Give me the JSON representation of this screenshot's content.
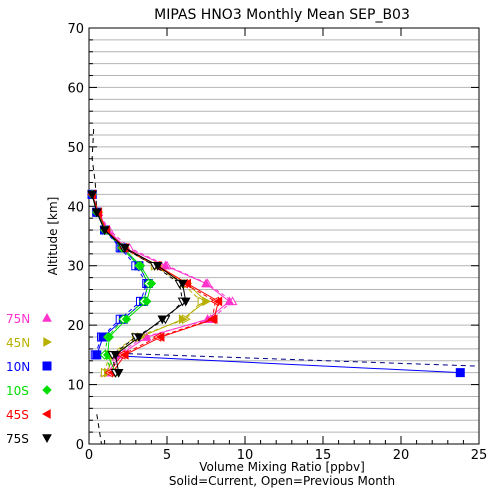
{
  "chart_data": {
    "type": "line",
    "title": "MIPAS HNO3 Monthly Mean SEP_B03",
    "xlabel": "Volume Mixing Ratio [ppbv]",
    "xlabel2": "Solid=Current, Open=Previous Month",
    "ylabel": "Altitude [km]",
    "xlim": [
      0,
      25
    ],
    "ylim": [
      0,
      70
    ],
    "xticks": [
      "0",
      "5",
      "10",
      "15",
      "20",
      "25"
    ],
    "yticks": [
      "0",
      "10",
      "20",
      "30",
      "40",
      "50",
      "60",
      "70"
    ],
    "grid": "horizontal",
    "legend_placement": "left-outside",
    "series": [
      {
        "name": "75N",
        "color": "#ff33cc",
        "marker": "triangle-up",
        "current": [
          [
            1.2,
            12
          ],
          [
            2.0,
            15
          ],
          [
            3.7,
            18
          ],
          [
            7.6,
            21
          ],
          [
            9.0,
            24
          ],
          [
            7.5,
            27
          ],
          [
            4.9,
            30
          ],
          [
            2.4,
            33
          ],
          [
            1.2,
            36
          ],
          [
            0.6,
            39
          ],
          [
            0.2,
            42
          ]
        ],
        "previous": [
          [
            1.0,
            12
          ],
          [
            1.8,
            15
          ],
          [
            3.5,
            18
          ],
          [
            7.8,
            21
          ],
          [
            9.2,
            24
          ],
          [
            7.6,
            27
          ],
          [
            5.0,
            30
          ],
          [
            2.6,
            33
          ],
          [
            1.3,
            36
          ],
          [
            0.6,
            39
          ],
          [
            0.2,
            42
          ]
        ]
      },
      {
        "name": "45N",
        "color": "#b8b000",
        "marker": "triangle-right",
        "current": [
          [
            1.2,
            12
          ],
          [
            1.5,
            15
          ],
          [
            3.3,
            18
          ],
          [
            6.0,
            21
          ],
          [
            7.5,
            24
          ],
          [
            6.3,
            27
          ],
          [
            4.4,
            30
          ],
          [
            2.3,
            33
          ],
          [
            1.1,
            36
          ],
          [
            0.6,
            39
          ],
          [
            0.2,
            42
          ]
        ],
        "previous": [
          [
            1.0,
            12
          ],
          [
            1.3,
            15
          ],
          [
            3.0,
            18
          ],
          [
            6.2,
            21
          ],
          [
            7.2,
            24
          ],
          [
            6.0,
            27
          ],
          [
            4.2,
            30
          ],
          [
            2.2,
            33
          ],
          [
            1.1,
            36
          ],
          [
            0.6,
            39
          ],
          [
            0.2,
            42
          ]
        ]
      },
      {
        "name": "10N",
        "color": "#0000ff",
        "marker": "square",
        "current": [
          [
            23.8,
            12
          ],
          [
            0.5,
            15
          ],
          [
            0.9,
            18
          ],
          [
            2.2,
            21
          ],
          [
            3.5,
            24
          ],
          [
            3.8,
            27
          ],
          [
            3.2,
            30
          ],
          [
            2.1,
            33
          ],
          [
            1.0,
            36
          ],
          [
            0.5,
            39
          ],
          [
            0.2,
            42
          ]
        ],
        "previous": [
          [
            0.4,
            15
          ],
          [
            0.8,
            18
          ],
          [
            2.0,
            21
          ],
          [
            3.3,
            24
          ],
          [
            3.7,
            27
          ],
          [
            3.0,
            30
          ],
          [
            2.0,
            33
          ],
          [
            1.0,
            36
          ],
          [
            0.5,
            39
          ],
          [
            0.2,
            42
          ]
        ]
      },
      {
        "name": "10S",
        "color": "#00dd00",
        "marker": "diamond",
        "current": [
          [
            1.7,
            12
          ],
          [
            1.2,
            15
          ],
          [
            1.3,
            18
          ],
          [
            2.4,
            21
          ],
          [
            3.7,
            24
          ],
          [
            4.0,
            27
          ],
          [
            3.3,
            30
          ],
          [
            2.2,
            33
          ],
          [
            1.1,
            36
          ],
          [
            0.5,
            39
          ],
          [
            0.2,
            42
          ]
        ],
        "previous": [
          [
            1.5,
            12
          ],
          [
            1.0,
            15
          ],
          [
            1.2,
            18
          ],
          [
            2.2,
            21
          ],
          [
            3.5,
            24
          ],
          [
            3.8,
            27
          ],
          [
            3.2,
            30
          ],
          [
            2.1,
            33
          ],
          [
            1.0,
            36
          ],
          [
            0.5,
            39
          ],
          [
            0.2,
            42
          ]
        ]
      },
      {
        "name": "45S",
        "color": "#ff0000",
        "marker": "triangle-left",
        "current": [
          [
            1.5,
            12
          ],
          [
            2.3,
            15
          ],
          [
            4.6,
            18
          ],
          [
            8.0,
            21
          ],
          [
            8.3,
            24
          ],
          [
            6.3,
            27
          ],
          [
            4.4,
            30
          ],
          [
            2.3,
            33
          ],
          [
            1.1,
            36
          ],
          [
            0.6,
            39
          ],
          [
            0.2,
            42
          ]
        ],
        "previous": [
          [
            1.3,
            12
          ],
          [
            2.1,
            15
          ],
          [
            4.4,
            18
          ],
          [
            7.9,
            21
          ],
          [
            8.1,
            24
          ],
          [
            6.1,
            27
          ],
          [
            4.3,
            30
          ],
          [
            2.2,
            33
          ],
          [
            1.1,
            36
          ],
          [
            0.6,
            39
          ],
          [
            0.2,
            42
          ]
        ]
      },
      {
        "name": "75S",
        "color": "#000000",
        "marker": "triangle-down",
        "current": [
          [
            1.9,
            12
          ],
          [
            1.7,
            15
          ],
          [
            3.2,
            18
          ],
          [
            4.7,
            21
          ],
          [
            6.2,
            24
          ],
          [
            6.0,
            27
          ],
          [
            4.4,
            30
          ],
          [
            2.3,
            33
          ],
          [
            1.0,
            36
          ],
          [
            0.5,
            39
          ],
          [
            0.2,
            42
          ]
        ],
        "previous": [
          [
            1.7,
            12
          ],
          [
            1.5,
            15
          ],
          [
            3.0,
            18
          ],
          [
            4.9,
            21
          ],
          [
            6.0,
            24
          ],
          [
            5.8,
            27
          ],
          [
            4.2,
            30
          ],
          [
            2.2,
            33
          ],
          [
            1.0,
            36
          ],
          [
            0.5,
            39
          ],
          [
            0.2,
            42
          ]
        ]
      }
    ],
    "annotations": [
      {
        "type": "dashed-line",
        "color": "#000080",
        "points": [
          [
            2.5,
            15.2
          ],
          [
            25,
            13.1
          ]
        ]
      },
      {
        "type": "dashed-line",
        "color": "#000000",
        "points": [
          [
            0.3,
            53
          ],
          [
            0.2,
            48
          ],
          [
            0.4,
            44
          ],
          [
            0.5,
            39
          ]
        ]
      },
      {
        "type": "dashed-line",
        "color": "#000000",
        "points": [
          [
            0.5,
            5
          ],
          [
            0.8,
            0
          ]
        ]
      }
    ]
  }
}
